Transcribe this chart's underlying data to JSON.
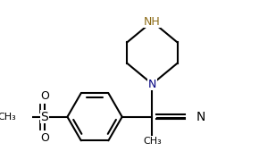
{
  "bg_color": "#ffffff",
  "line_color": "#000000",
  "bond_lw": 1.5,
  "font_size": 9,
  "nh_color": "#8B6914",
  "n_color": "#000080",
  "figsize": [
    2.9,
    1.88
  ],
  "dpi": 100,
  "xlim": [
    -2.2,
    1.6
  ],
  "ylim": [
    -0.9,
    2.1
  ]
}
